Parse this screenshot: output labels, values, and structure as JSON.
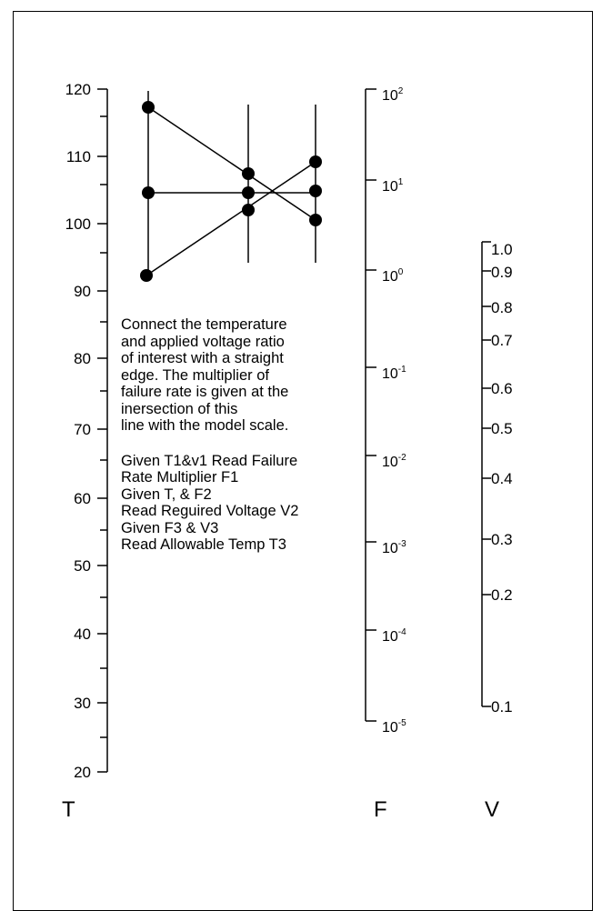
{
  "nomogram": {
    "temperature_scale": {
      "letter": "T",
      "labels": [
        "120",
        "110",
        "100",
        "90",
        "80",
        "70",
        "60",
        "50",
        "40",
        "30",
        "20"
      ]
    },
    "failure_scale": {
      "letter": "F",
      "labels": [
        {
          "base": "10",
          "exp": "2"
        },
        {
          "base": "10",
          "exp": "1"
        },
        {
          "base": "10",
          "exp": "0"
        },
        {
          "base": "10",
          "exp": "-1"
        },
        {
          "base": "10",
          "exp": "-2"
        },
        {
          "base": "10",
          "exp": "-3"
        },
        {
          "base": "10",
          "exp": "-4"
        },
        {
          "base": "10",
          "exp": "-5"
        }
      ]
    },
    "voltage_scale": {
      "letter": "V",
      "labels": [
        "1.0",
        "0.9",
        "0.8",
        "0.7",
        "0.6",
        "0.5",
        "0.4",
        "0.3",
        "0.2",
        "0.1"
      ]
    },
    "instructions": [
      "Connect the temperature",
      "and applied voltage ratio",
      "of interest with a straight",
      "edge. The multiplier of",
      "failure rate is given at the",
      "inersection of this",
      "line with the model scale."
    ],
    "examples": [
      "Given T1&v1 Read Failure",
      "Rate Multiplier F1",
      "Given T, & F2",
      "Read Reguired Voltage V2",
      "Given F3 & V3",
      "Read Allowable Temp T3"
    ]
  }
}
